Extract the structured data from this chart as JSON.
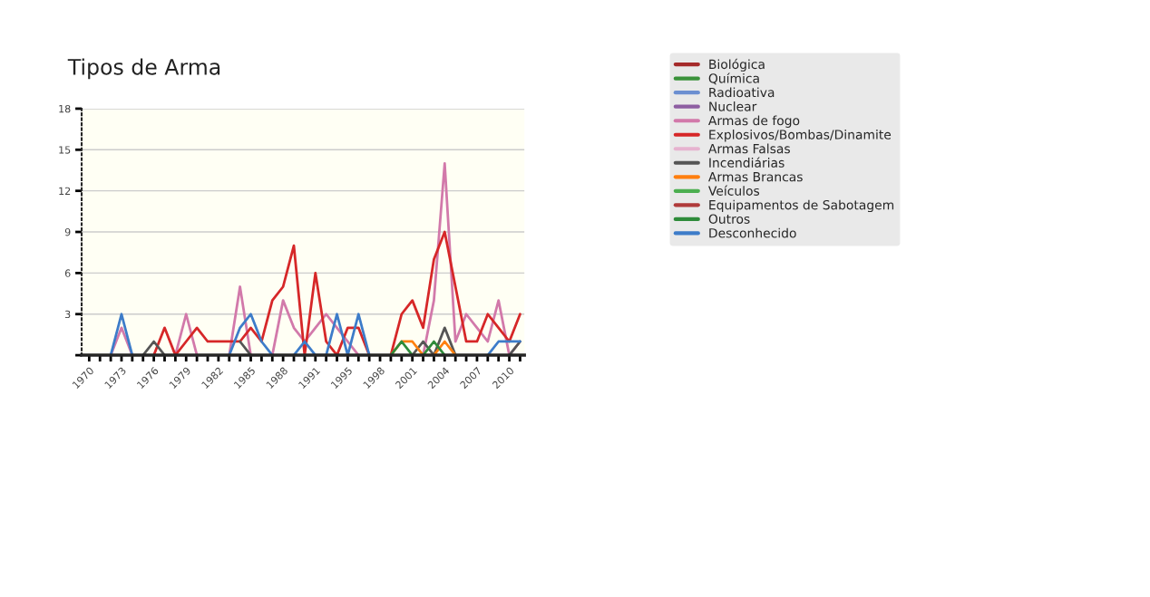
{
  "chart_data": {
    "type": "line",
    "title": "Tipos de Arma",
    "categories": [
      "1970",
      null,
      null,
      "1973",
      null,
      null,
      "1976",
      null,
      null,
      "1979",
      null,
      null,
      "1982",
      null,
      null,
      "1985",
      null,
      null,
      "1988",
      null,
      null,
      "1991",
      null,
      null,
      "1995",
      null,
      null,
      "1998",
      null,
      null,
      "2001",
      null,
      null,
      "2004",
      null,
      null,
      "2007",
      null,
      null,
      "2010",
      null
    ],
    "ylim": [
      0,
      18
    ],
    "yticks": [
      {
        "value": 0,
        "label": null
      },
      3,
      6,
      9,
      12,
      15,
      18
    ],
    "grid": "y",
    "legend": "right",
    "line_style": "solid",
    "marker": "none",
    "series": [
      {
        "name": "Biológica",
        "color": "#a52a2a",
        "values": [
          null,
          null,
          null,
          null,
          null,
          null,
          null,
          null,
          null,
          null,
          null,
          null,
          null,
          null,
          null,
          null,
          null,
          null,
          null,
          null,
          null,
          null,
          null,
          null,
          null,
          null,
          null,
          null,
          null,
          null,
          null,
          null,
          null,
          null,
          null,
          null,
          null,
          null,
          null,
          null,
          null
        ]
      },
      {
        "name": "Química",
        "color": "#3a923a",
        "values": [
          null,
          null,
          null,
          null,
          null,
          null,
          null,
          null,
          null,
          null,
          null,
          null,
          null,
          null,
          null,
          null,
          null,
          null,
          null,
          null,
          null,
          null,
          null,
          null,
          null,
          null,
          null,
          null,
          null,
          null,
          null,
          null,
          null,
          null,
          null,
          null,
          null,
          null,
          null,
          null,
          null
        ]
      },
      {
        "name": "Radioativa",
        "color": "#6b8fd1",
        "values": [
          null,
          null,
          null,
          null,
          null,
          null,
          null,
          null,
          null,
          null,
          null,
          null,
          null,
          null,
          null,
          null,
          null,
          null,
          null,
          null,
          null,
          null,
          null,
          null,
          null,
          null,
          null,
          null,
          null,
          null,
          null,
          null,
          null,
          null,
          null,
          null,
          null,
          null,
          null,
          null,
          null
        ]
      },
      {
        "name": "Nuclear",
        "color": "#8e5ea2",
        "values": [
          null,
          null,
          null,
          null,
          null,
          null,
          null,
          null,
          null,
          null,
          null,
          null,
          null,
          null,
          null,
          null,
          null,
          null,
          null,
          null,
          null,
          null,
          null,
          null,
          null,
          null,
          null,
          null,
          null,
          null,
          null,
          null,
          null,
          null,
          null,
          null,
          null,
          null,
          null,
          null,
          null
        ]
      },
      {
        "name": "Armas de fogo",
        "color": "#d279aa",
        "values": [
          null,
          null,
          0,
          2,
          0,
          null,
          null,
          null,
          0,
          3,
          0,
          null,
          null,
          0,
          5,
          0,
          null,
          0,
          4,
          2,
          1,
          2,
          3,
          2,
          1,
          0,
          null,
          null,
          null,
          null,
          null,
          0,
          4,
          14,
          1,
          3,
          2,
          1,
          4,
          0,
          1
        ]
      },
      {
        "name": "Explosivos/Bombas/Dinamite",
        "color": "#d62728",
        "values": [
          null,
          null,
          null,
          null,
          null,
          null,
          0,
          2,
          0,
          1,
          2,
          1,
          1,
          1,
          1,
          2,
          1,
          4,
          5,
          8,
          0,
          6,
          1,
          0,
          2,
          2,
          0,
          null,
          0,
          3,
          4,
          2,
          7,
          9,
          5,
          1,
          1,
          3,
          2,
          1,
          3
        ]
      },
      {
        "name": "Armas Falsas",
        "color": "#e6b3cf",
        "values": [
          null,
          null,
          null,
          null,
          null,
          null,
          null,
          null,
          null,
          null,
          null,
          null,
          null,
          null,
          null,
          null,
          null,
          null,
          null,
          null,
          null,
          null,
          null,
          null,
          null,
          null,
          null,
          null,
          null,
          null,
          null,
          null,
          null,
          null,
          null,
          null,
          null,
          null,
          null,
          null,
          null
        ]
      },
      {
        "name": "Incendiárias",
        "color": "#555555",
        "values": [
          null,
          null,
          null,
          null,
          null,
          0,
          1,
          0,
          null,
          null,
          null,
          null,
          null,
          null,
          1,
          0,
          null,
          null,
          null,
          null,
          null,
          null,
          null,
          null,
          null,
          null,
          null,
          null,
          null,
          null,
          0,
          1,
          0,
          2,
          0,
          null,
          null,
          null,
          null,
          0,
          1
        ]
      },
      {
        "name": "Armas Brancas",
        "color": "#ff7f0e",
        "values": [
          null,
          null,
          null,
          null,
          null,
          null,
          null,
          null,
          null,
          null,
          null,
          null,
          null,
          null,
          null,
          null,
          null,
          null,
          null,
          null,
          null,
          null,
          null,
          null,
          null,
          null,
          null,
          null,
          0,
          1,
          1,
          0,
          0,
          1,
          0,
          null,
          null,
          null,
          null,
          null,
          null
        ]
      },
      {
        "name": "Veículos",
        "color": "#4caf50",
        "values": [
          null,
          null,
          null,
          null,
          null,
          null,
          null,
          null,
          null,
          null,
          null,
          null,
          null,
          null,
          null,
          null,
          null,
          null,
          null,
          null,
          null,
          null,
          null,
          null,
          null,
          null,
          null,
          null,
          null,
          null,
          null,
          null,
          null,
          null,
          null,
          null,
          null,
          null,
          null,
          null,
          null
        ]
      },
      {
        "name": "Equipamentos de Sabotagem",
        "color": "#b03a3a",
        "values": [
          null,
          null,
          null,
          null,
          null,
          null,
          null,
          null,
          null,
          null,
          null,
          null,
          null,
          null,
          null,
          null,
          null,
          null,
          null,
          null,
          null,
          null,
          null,
          null,
          null,
          null,
          null,
          null,
          null,
          null,
          null,
          null,
          null,
          null,
          null,
          null,
          null,
          null,
          null,
          null,
          null
        ]
      },
      {
        "name": "Outros",
        "color": "#2e8b3a",
        "values": [
          null,
          null,
          null,
          null,
          null,
          null,
          null,
          null,
          null,
          null,
          null,
          null,
          null,
          null,
          null,
          null,
          null,
          null,
          null,
          null,
          null,
          null,
          null,
          null,
          null,
          null,
          null,
          null,
          0,
          1,
          0,
          0,
          1,
          0,
          null,
          null,
          null,
          null,
          null,
          null,
          null
        ]
      },
      {
        "name": "Desconhecido",
        "color": "#3d7cc9",
        "values": [
          null,
          null,
          0,
          3,
          0,
          null,
          null,
          null,
          null,
          null,
          null,
          null,
          null,
          0,
          2,
          3,
          1,
          0,
          null,
          0,
          1,
          0,
          0,
          3,
          0,
          3,
          0,
          null,
          null,
          null,
          null,
          null,
          null,
          null,
          null,
          null,
          null,
          0,
          1,
          1,
          1
        ]
      }
    ]
  }
}
